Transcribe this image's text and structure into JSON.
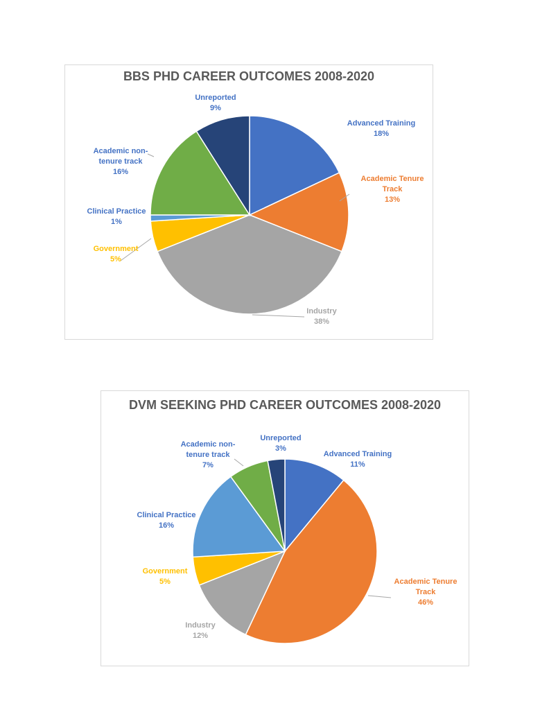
{
  "chart_data": [
    {
      "type": "pie",
      "title": "BBS PHD CAREER OUTCOMES 2008-2020",
      "slices": [
        {
          "name": "Advanced Training",
          "label_lines": [
            "Advanced Training"
          ],
          "pct": "18%",
          "value": 18,
          "color": "#4472C4",
          "label_color": "#4472C4"
        },
        {
          "name": "Academic Tenure Track",
          "label_lines": [
            "Academic Tenure",
            "Track"
          ],
          "pct": "13%",
          "value": 13,
          "color": "#ED7D31",
          "label_color": "#ED7D31"
        },
        {
          "name": "Industry",
          "label_lines": [
            "Industry"
          ],
          "pct": "38%",
          "value": 38,
          "color": "#A5A5A5",
          "label_color": "#A5A5A5"
        },
        {
          "name": "Government",
          "label_lines": [
            "Government"
          ],
          "pct": "5%",
          "value": 5,
          "color": "#FFC000",
          "label_color": "#FFC000"
        },
        {
          "name": "Clinical Practice",
          "label_lines": [
            "Clinical Practice"
          ],
          "pct": "1%",
          "value": 1,
          "color": "#5B9BD5",
          "label_color": "#4472C4"
        },
        {
          "name": "Academic non-tenure track",
          "label_lines": [
            "Academic non-",
            "tenure track"
          ],
          "pct": "16%",
          "value": 16,
          "color": "#70AD47",
          "label_color": "#4472C4"
        },
        {
          "name": "Unreported",
          "label_lines": [
            "Unreported"
          ],
          "pct": "9%",
          "value": 9,
          "color": "#264478",
          "label_color": "#4472C4"
        }
      ]
    },
    {
      "type": "pie",
      "title": "DVM SEEKING PHD CAREER OUTCOMES 2008-2020",
      "slices": [
        {
          "name": "Advanced Training",
          "label_lines": [
            "Advanced Training"
          ],
          "pct": "11%",
          "value": 11,
          "color": "#4472C4",
          "label_color": "#4472C4"
        },
        {
          "name": "Academic Tenure Track",
          "label_lines": [
            "Academic Tenure",
            "Track"
          ],
          "pct": "46%",
          "value": 46,
          "color": "#ED7D31",
          "label_color": "#ED7D31"
        },
        {
          "name": "Industry",
          "label_lines": [
            "Industry"
          ],
          "pct": "12%",
          "value": 12,
          "color": "#A5A5A5",
          "label_color": "#A5A5A5"
        },
        {
          "name": "Government",
          "label_lines": [
            "Government"
          ],
          "pct": "5%",
          "value": 5,
          "color": "#FFC000",
          "label_color": "#FFC000"
        },
        {
          "name": "Clinical Practice",
          "label_lines": [
            "Clinical Practice"
          ],
          "pct": "16%",
          "value": 16,
          "color": "#5B9BD5",
          "label_color": "#4472C4"
        },
        {
          "name": "Academic non-tenure track",
          "label_lines": [
            "Academic non-",
            "tenure track"
          ],
          "pct": "7%",
          "value": 7,
          "color": "#70AD47",
          "label_color": "#4472C4"
        },
        {
          "name": "Unreported",
          "label_lines": [
            "Unreported"
          ],
          "pct": "3%",
          "value": 3,
          "color": "#264478",
          "label_color": "#4472C4"
        }
      ]
    }
  ]
}
